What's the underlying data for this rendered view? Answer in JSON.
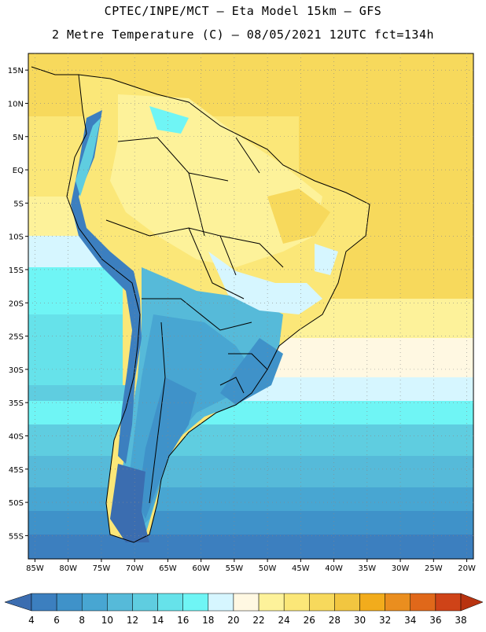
{
  "header": {
    "line1": "CPTEC/INPE/MCT –  Eta Model 15km – GFS",
    "line2": "2 Metre Temperature (C) – 08/05/2021 12UTC fct=134h"
  },
  "map": {
    "lon_range": [
      -86,
      -19
    ],
    "lat_range": [
      -58.5,
      17.5
    ],
    "lat_ticks": [
      {
        "value": 15,
        "label": "15N"
      },
      {
        "value": 10,
        "label": "10N"
      },
      {
        "value": 5,
        "label": "5N"
      },
      {
        "value": 0,
        "label": "EQ"
      },
      {
        "value": -5,
        "label": "5S"
      },
      {
        "value": -10,
        "label": "10S"
      },
      {
        "value": -15,
        "label": "15S"
      },
      {
        "value": -20,
        "label": "20S"
      },
      {
        "value": -25,
        "label": "25S"
      },
      {
        "value": -30,
        "label": "30S"
      },
      {
        "value": -35,
        "label": "35S"
      },
      {
        "value": -40,
        "label": "40S"
      },
      {
        "value": -45,
        "label": "45S"
      },
      {
        "value": -50,
        "label": "50S"
      },
      {
        "value": -55,
        "label": "55S"
      }
    ],
    "lon_ticks": [
      {
        "value": -85,
        "label": "85W"
      },
      {
        "value": -80,
        "label": "80W"
      },
      {
        "value": -75,
        "label": "75W"
      },
      {
        "value": -70,
        "label": "70W"
      },
      {
        "value": -65,
        "label": "65W"
      },
      {
        "value": -60,
        "label": "60W"
      },
      {
        "value": -55,
        "label": "55W"
      },
      {
        "value": -50,
        "label": "50W"
      },
      {
        "value": -45,
        "label": "45W"
      },
      {
        "value": -40,
        "label": "40W"
      },
      {
        "value": -35,
        "label": "35W"
      },
      {
        "value": -30,
        "label": "30W"
      },
      {
        "value": -25,
        "label": "25W"
      },
      {
        "value": -20,
        "label": "20W"
      }
    ]
  },
  "colorbar": {
    "labels": [
      "4",
      "6",
      "8",
      "10",
      "12",
      "14",
      "16",
      "18",
      "20",
      "22",
      "24",
      "26",
      "28",
      "30",
      "32",
      "34",
      "36",
      "38"
    ],
    "colors": [
      "#3b6db0",
      "#3c7fbf",
      "#3f92c9",
      "#48a6d2",
      "#56bad9",
      "#5fcde0",
      "#66e2ea",
      "#6ff5f5",
      "#d6f6ff",
      "#fff8e2",
      "#fdf29a",
      "#fbe778",
      "#f7d95c",
      "#f2c640",
      "#f2ac1c",
      "#ea8e1f",
      "#e0681a",
      "#cf4318",
      "#b83310"
    ]
  }
}
